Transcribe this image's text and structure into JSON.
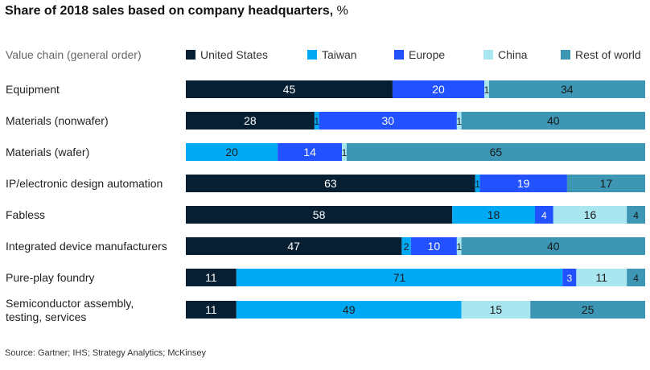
{
  "chart_data": {
    "type": "bar",
    "orientation": "horizontal",
    "stacked": true,
    "title": "Share of 2018 sales based on company headquarters,",
    "title_unit": "%",
    "category_header": "Value chain (general order)",
    "categories": [
      "Equipment",
      "Materials (nonwafer)",
      "Materials (wafer)",
      "IP/electronic design automation",
      "Fabless",
      "Integrated device manufacturers",
      "Pure-play foundry",
      "Semiconductor assembly, testing, services"
    ],
    "series": [
      {
        "name": "United States",
        "color": "#061f33",
        "label_color": "#ffffff",
        "values": [
          45,
          28,
          0,
          63,
          58,
          47,
          11,
          11
        ]
      },
      {
        "name": "Taiwan",
        "color": "#00a9f4",
        "label_color": "#1a1a1a",
        "values": [
          0,
          1,
          20,
          1,
          18,
          2,
          71,
          49
        ]
      },
      {
        "name": "Europe",
        "color": "#2251ff",
        "label_color": "#ffffff",
        "values": [
          20,
          30,
          14,
          19,
          4,
          10,
          3,
          0
        ]
      },
      {
        "name": "China",
        "color": "#aae6f0",
        "label_color": "#1a1a1a",
        "values": [
          1,
          1,
          1,
          0,
          16,
          1,
          11,
          15
        ]
      },
      {
        "name": "Rest of world",
        "color": "#3c96b4",
        "label_color": "#1a1a1a",
        "values": [
          34,
          40,
          65,
          17,
          4,
          40,
          4,
          25
        ]
      }
    ],
    "xlim": [
      0,
      100
    ],
    "legend_position": "top",
    "grid": false
  },
  "source": "Source: Gartner; IHS; Strategy Analytics; McKinsey"
}
